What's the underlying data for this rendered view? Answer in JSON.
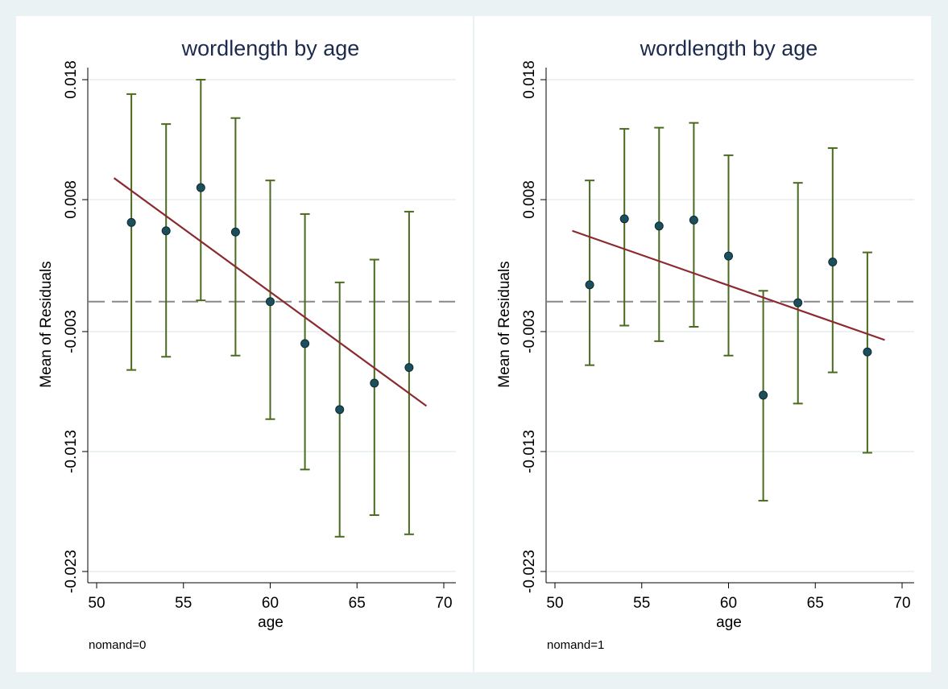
{
  "colors": {
    "background": "#eaf2f3",
    "panel": "#ffffff",
    "title": "#1c2a4e",
    "errorbar": "#4a6a1e",
    "marker": "#1d4e5c",
    "fitline": "#8b2a2f",
    "reference": "#888888",
    "grid": "#e6eeee",
    "axis": "#000000"
  },
  "chart_data": [
    {
      "type": "scatter",
      "title": "wordlength by age",
      "xlabel": "age",
      "ylabel": "Mean of Residuals",
      "note": "nomand=0",
      "xlim": [
        50,
        70
      ],
      "ylim": [
        -0.023,
        0.018
      ],
      "xticks": [
        "50",
        "55",
        "60",
        "65",
        "70"
      ],
      "yticks": [
        "-0.023",
        "-0.013",
        "-0.003",
        "0.008",
        "0.018"
      ],
      "grid": true,
      "reference_line_y": -0.0005,
      "points": [
        {
          "x": 52,
          "y": 0.0061,
          "lo": -0.0062,
          "hi": 0.0168
        },
        {
          "x": 54,
          "y": 0.0054,
          "lo": -0.0051,
          "hi": 0.0143
        },
        {
          "x": 56,
          "y": 0.009,
          "lo": -0.0004,
          "hi": 0.018
        },
        {
          "x": 58,
          "y": 0.0053,
          "lo": -0.005,
          "hi": 0.0148
        },
        {
          "x": 60,
          "y": -0.0005,
          "lo": -0.0103,
          "hi": 0.0096
        },
        {
          "x": 62,
          "y": -0.004,
          "lo": -0.0145,
          "hi": 0.0068
        },
        {
          "x": 64,
          "y": -0.0095,
          "lo": -0.0201,
          "hi": 0.0011
        },
        {
          "x": 66,
          "y": -0.0073,
          "lo": -0.0183,
          "hi": 0.003
        },
        {
          "x": 68,
          "y": -0.006,
          "lo": -0.0199,
          "hi": 0.007
        }
      ],
      "fit_line": {
        "x": [
          51,
          69
        ],
        "y": [
          0.0098,
          -0.0092
        ]
      }
    },
    {
      "type": "scatter",
      "title": "wordlength by age",
      "xlabel": "age",
      "ylabel": "Mean of Residuals",
      "note": "nomand=1",
      "xlim": [
        50,
        70
      ],
      "ylim": [
        -0.023,
        0.018
      ],
      "xticks": [
        "50",
        "55",
        "60",
        "65",
        "70"
      ],
      "yticks": [
        "-0.023",
        "-0.013",
        "-0.003",
        "0.008",
        "0.018"
      ],
      "grid": true,
      "reference_line_y": -0.0005,
      "points": [
        {
          "x": 52,
          "y": 0.0009,
          "lo": -0.0058,
          "hi": 0.0096
        },
        {
          "x": 54,
          "y": 0.0064,
          "lo": -0.0025,
          "hi": 0.0139
        },
        {
          "x": 56,
          "y": 0.0058,
          "lo": -0.0038,
          "hi": 0.014
        },
        {
          "x": 58,
          "y": 0.0063,
          "lo": -0.0026,
          "hi": 0.0144
        },
        {
          "x": 60,
          "y": 0.0033,
          "lo": -0.005,
          "hi": 0.0117
        },
        {
          "x": 62,
          "y": -0.0083,
          "lo": -0.0171,
          "hi": 0.0004
        },
        {
          "x": 64,
          "y": -0.0006,
          "lo": -0.009,
          "hi": 0.0094
        },
        {
          "x": 66,
          "y": 0.0028,
          "lo": -0.0064,
          "hi": 0.0123
        },
        {
          "x": 68,
          "y": -0.0047,
          "lo": -0.0131,
          "hi": 0.0036
        }
      ],
      "fit_line": {
        "x": [
          51,
          69
        ],
        "y": [
          0.0054,
          -0.0037
        ]
      }
    }
  ]
}
